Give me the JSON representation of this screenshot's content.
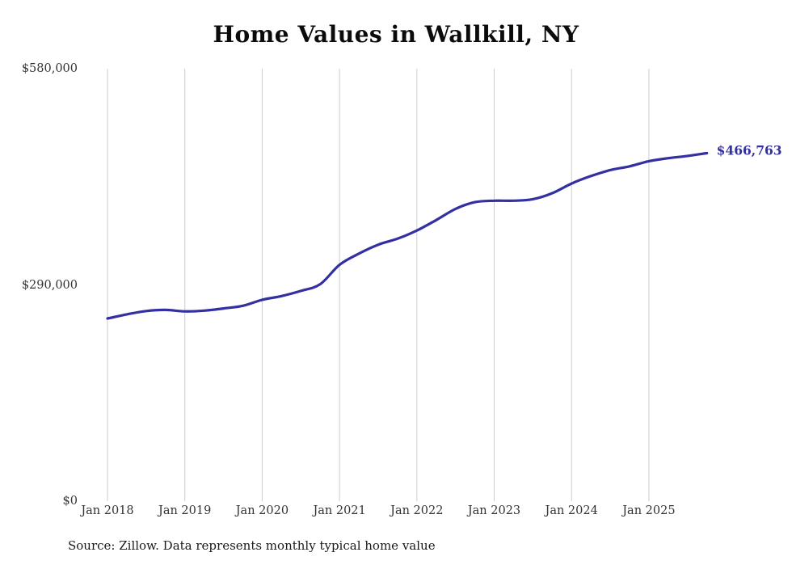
{
  "chart_data": {
    "type": "line",
    "title": "Home Values in Wallkill, NY",
    "series_name": "Monthly typical home value",
    "x": [
      "2018-01",
      "2018-04",
      "2018-07",
      "2018-10",
      "2019-01",
      "2019-04",
      "2019-07",
      "2019-10",
      "2020-01",
      "2020-04",
      "2020-07",
      "2020-10",
      "2021-01",
      "2021-04",
      "2021-07",
      "2021-10",
      "2022-01",
      "2022-04",
      "2022-07",
      "2022-10",
      "2023-01",
      "2023-04",
      "2023-07",
      "2023-10",
      "2024-01",
      "2024-04",
      "2024-07",
      "2024-10",
      "2025-01",
      "2025-04",
      "2025-07",
      "2025-10"
    ],
    "values": [
      245000,
      250500,
      255000,
      256500,
      254500,
      255500,
      258500,
      262000,
      270000,
      275000,
      282000,
      291000,
      317000,
      332000,
      344000,
      352000,
      363000,
      377000,
      392000,
      401000,
      403000,
      403000,
      405000,
      413000,
      426000,
      436000,
      444000,
      449000,
      456000,
      460000,
      463000,
      466763
    ],
    "xlabel": "",
    "ylabel": "",
    "ylim": [
      0,
      580000
    ],
    "y_tick_values": [
      0,
      290000,
      580000
    ],
    "y_tick_labels": [
      "$0",
      "$290,000",
      "$580,000"
    ],
    "x_tick_labels": [
      "Jan 2018",
      "Jan 2019",
      "Jan 2020",
      "Jan 2021",
      "Jan 2022",
      "Jan 2023",
      "Jan 2024",
      "Jan 2025"
    ],
    "grid": "vertical-only",
    "legend": "none",
    "line_color": "#3330a2",
    "grid_color": "#cccccc",
    "end_label": "$466,763",
    "latest_value": 466763,
    "source": "Source: Zillow. Data represents monthly typical home value"
  }
}
